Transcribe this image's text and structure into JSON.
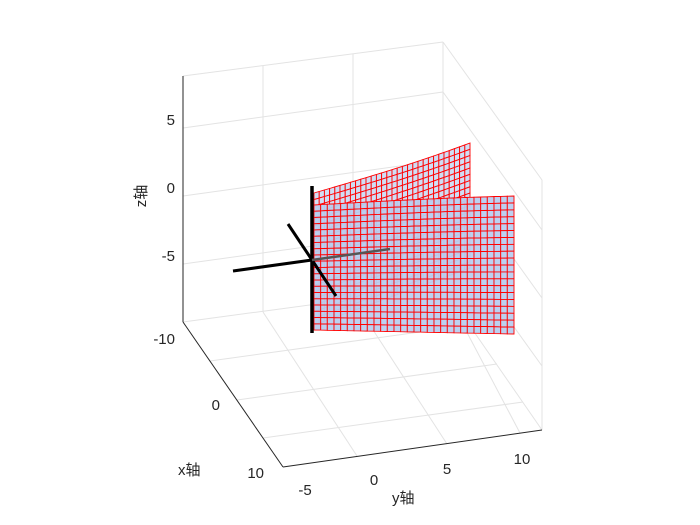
{
  "chart_data": {
    "type": "surface3d",
    "title": "",
    "xlabel": "x轴",
    "ylabel": "y轴",
    "zlabel": "z轴",
    "x_ticks": [
      -10,
      0,
      10
    ],
    "y_ticks": [
      -5,
      0,
      5,
      10
    ],
    "z_ticks": [
      5,
      0,
      -5
    ],
    "xlim": [
      -10,
      12
    ],
    "ylim": [
      -7,
      13
    ],
    "zlim": [
      -10,
      8
    ],
    "grid": true,
    "surfaces": [
      {
        "name": "",
        "description_points": {
          "u_count": 30,
          "v_count": 20
        },
        "face_color": "#b8cff0",
        "edge_color": "#ff0000"
      }
    ],
    "axes_lines": [
      {
        "color": "#000000"
      },
      {
        "color": "#000000"
      },
      {
        "color": "#000000"
      },
      {
        "color": "#555555"
      }
    ]
  }
}
